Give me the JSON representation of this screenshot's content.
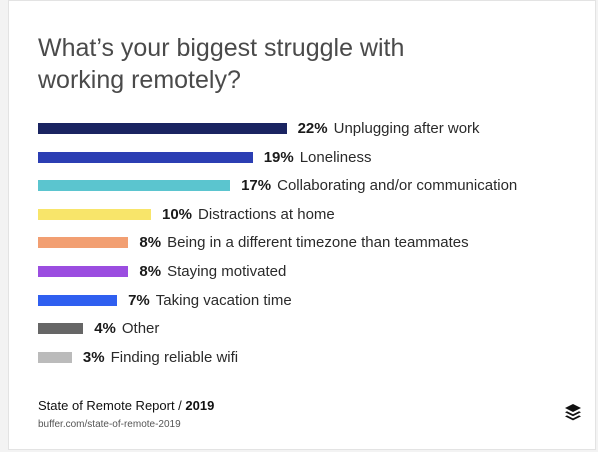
{
  "chart_data": {
    "type": "bar",
    "orientation": "horizontal",
    "title_lines": [
      "What’s your biggest struggle with",
      "working remotely?"
    ],
    "value_suffix": "%",
    "categories": [
      "Unplugging after work",
      "Loneliness",
      "Collaborating and/or communication",
      "Distractions at home",
      "Being in a different timezone than teammates",
      "Staying motivated",
      "Taking vacation time",
      "Other",
      "Finding reliable wifi"
    ],
    "values": [
      22,
      19,
      17,
      10,
      8,
      8,
      7,
      4,
      3
    ],
    "value_labels": [
      "22%",
      "19%",
      "17%",
      "10%",
      "8%",
      "8%",
      "7%",
      "4%",
      "3%"
    ],
    "colors": [
      "#1a2461",
      "#2b3eb3",
      "#5bc5cf",
      "#f8e56a",
      "#f29f72",
      "#9b4de0",
      "#2f5ff0",
      "#666666",
      "#bbbbbb"
    ],
    "grid": false,
    "legend": "none"
  },
  "footer": {
    "report_prefix": "State of Remote Report / ",
    "report_year": "2019",
    "url": "buffer.com/state-of-remote-2019"
  },
  "logo_icon": "buffer-stack-icon"
}
